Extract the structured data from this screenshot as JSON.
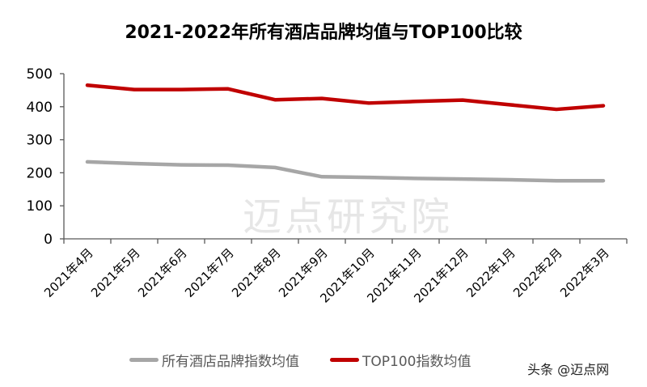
{
  "title": "2021-2022年所有酒店品牌均值与TOP100比较",
  "watermark_bg": "迈点研究院",
  "footer_watermark": "头条 @迈点网",
  "colors": {
    "series_all": "#a6a6a6",
    "series_top100": "#c00000",
    "axis": "#595959"
  },
  "chart_data": {
    "type": "line",
    "title": "2021-2022年所有酒店品牌均值与TOP100比较",
    "xlabel": "",
    "ylabel": "",
    "ylim": [
      0,
      500
    ],
    "yticks": [
      0,
      100,
      200,
      300,
      400,
      500
    ],
    "grid": false,
    "legend_position": "bottom",
    "categories": [
      "2021年4月",
      "2021年5月",
      "2021年6月",
      "2021年7月",
      "2021年8月",
      "2021年9月",
      "2021年10月",
      "2021年11月",
      "2021年12月",
      "2022年1月",
      "2022年2月",
      "2022年3月"
    ],
    "series": [
      {
        "name": "所有酒店品牌指数均值",
        "color": "#a6a6a6",
        "values": [
          233,
          228,
          224,
          223,
          216,
          188,
          186,
          183,
          181,
          179,
          176,
          176
        ]
      },
      {
        "name": "TOP100指数均值",
        "color": "#c00000",
        "values": [
          465,
          452,
          452,
          454,
          421,
          425,
          411,
          416,
          420,
          406,
          392,
          403
        ]
      }
    ]
  }
}
